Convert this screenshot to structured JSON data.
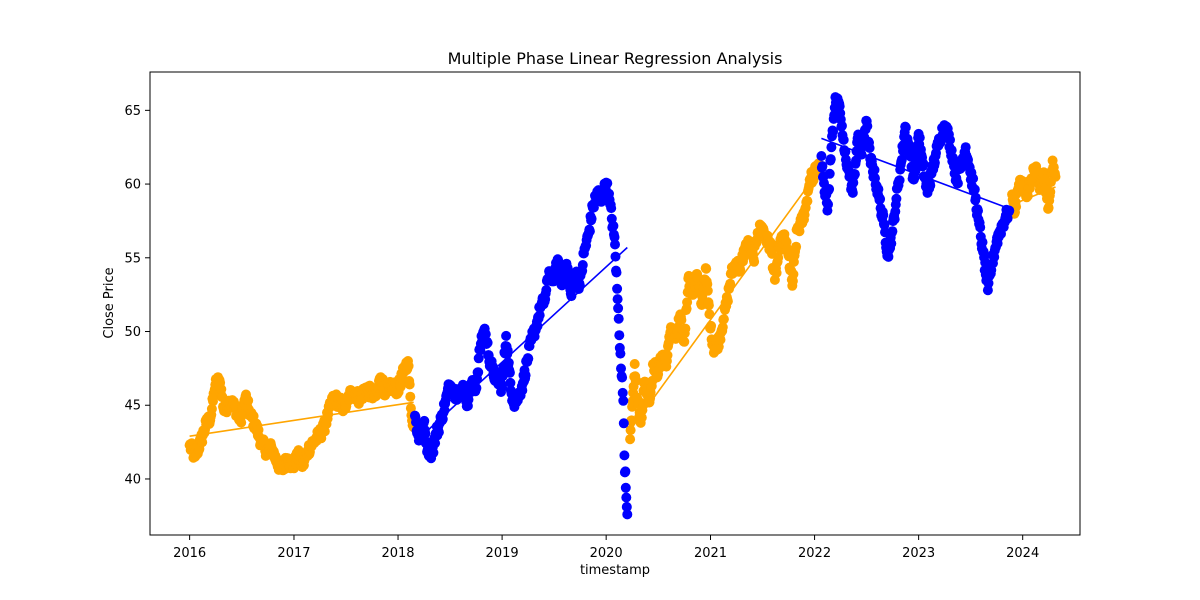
{
  "chart_data": {
    "type": "scatter",
    "title": "Multiple Phase Linear Regression Analysis",
    "xlabel": "timestamp",
    "ylabel": "Close Price",
    "xlim": [
      "2015-08-15",
      "2024-07-20"
    ],
    "ylim": [
      36.2,
      67.6
    ],
    "x_ticks": [
      "2016",
      "2017",
      "2018",
      "2019",
      "2020",
      "2021",
      "2022",
      "2023",
      "2024"
    ],
    "y_ticks": [
      40,
      45,
      50,
      55,
      60,
      65
    ],
    "grid": false,
    "legend": "none",
    "phase_colors": [
      "#ffa500",
      "#0000ff"
    ],
    "phases": [
      {
        "color": "#ffa500",
        "points": [
          [
            "2016-01-01",
            42.3
          ],
          [
            "2016-01-20",
            41.5
          ],
          [
            "2016-02-10",
            42.6
          ],
          [
            "2016-02-28",
            43.7
          ],
          [
            "2016-03-15",
            44.2
          ],
          [
            "2016-03-31",
            46.4
          ],
          [
            "2016-04-15",
            46.7
          ],
          [
            "2016-05-01",
            44.6
          ],
          [
            "2016-05-20",
            45.3
          ],
          [
            "2016-06-10",
            44.8
          ],
          [
            "2016-06-28",
            43.9
          ],
          [
            "2016-07-15",
            45.6
          ],
          [
            "2016-08-01",
            44.3
          ],
          [
            "2016-08-20",
            43.6
          ],
          [
            "2016-09-10",
            42.4
          ],
          [
            "2016-09-28",
            41.9
          ],
          [
            "2016-10-15",
            42.1
          ],
          [
            "2016-11-01",
            41.2
          ],
          [
            "2016-11-20",
            40.6
          ],
          [
            "2016-12-10",
            41.4
          ],
          [
            "2016-12-28",
            40.8
          ],
          [
            "2017-01-15",
            41.6
          ],
          [
            "2017-02-01",
            40.9
          ],
          [
            "2017-02-20",
            42.0
          ],
          [
            "2017-03-10",
            42.5
          ],
          [
            "2017-03-28",
            42.9
          ],
          [
            "2017-04-15",
            43.4
          ],
          [
            "2017-05-01",
            44.4
          ],
          [
            "2017-05-20",
            45.5
          ],
          [
            "2017-06-10",
            45.2
          ],
          [
            "2017-06-28",
            44.8
          ],
          [
            "2017-07-15",
            45.7
          ],
          [
            "2017-08-01",
            45.9
          ],
          [
            "2017-08-20",
            45.4
          ],
          [
            "2017-09-10",
            46.2
          ],
          [
            "2017-09-28",
            45.8
          ],
          [
            "2017-10-15",
            45.6
          ],
          [
            "2017-11-01",
            46.9
          ],
          [
            "2017-11-20",
            45.8
          ],
          [
            "2017-12-10",
            46.3
          ],
          [
            "2018-01-01",
            46.1
          ],
          [
            "2018-01-20",
            47.2
          ],
          [
            "2018-02-05",
            48.0
          ],
          [
            "2018-02-15",
            44.8
          ],
          [
            "2018-02-25",
            43.5
          ],
          [
            "2020-03-25",
            42.7
          ],
          [
            "2020-04-01",
            44.9
          ],
          [
            "2020-04-10",
            47.8
          ],
          [
            "2020-04-20",
            45.4
          ],
          [
            "2020-05-01",
            43.8
          ],
          [
            "2020-05-15",
            46.6
          ],
          [
            "2020-06-01",
            45.2
          ],
          [
            "2020-06-15",
            47.8
          ],
          [
            "2020-07-01",
            47.1
          ],
          [
            "2020-07-15",
            48.4
          ],
          [
            "2020-08-01",
            48.0
          ],
          [
            "2020-08-15",
            50.3
          ],
          [
            "2020-09-01",
            49.5
          ],
          [
            "2020-09-15",
            51.0
          ],
          [
            "2020-10-01",
            49.3
          ],
          [
            "2020-10-15",
            53.6
          ],
          [
            "2020-11-01",
            52.5
          ],
          [
            "2020-11-15",
            53.9
          ],
          [
            "2020-12-01",
            51.8
          ],
          [
            "2020-12-15",
            54.3
          ],
          [
            "2021-01-01",
            50.2
          ],
          [
            "2021-01-15",
            48.7
          ],
          [
            "2021-02-01",
            49.5
          ],
          [
            "2021-02-15",
            50.8
          ],
          [
            "2021-03-01",
            52.2
          ],
          [
            "2021-03-15",
            53.9
          ],
          [
            "2021-04-01",
            54.7
          ],
          [
            "2021-04-15",
            54.2
          ],
          [
            "2021-05-01",
            55.6
          ],
          [
            "2021-05-15",
            55.9
          ],
          [
            "2021-06-01",
            54.9
          ],
          [
            "2021-06-15",
            56.7
          ],
          [
            "2021-07-01",
            57.1
          ],
          [
            "2021-07-15",
            56.3
          ],
          [
            "2021-08-01",
            55.7
          ],
          [
            "2021-08-15",
            53.5
          ],
          [
            "2021-09-01",
            55.8
          ],
          [
            "2021-09-15",
            56.4
          ],
          [
            "2021-10-01",
            55.2
          ],
          [
            "2021-10-15",
            53.1
          ],
          [
            "2021-11-01",
            56.9
          ],
          [
            "2021-11-15",
            57.3
          ],
          [
            "2021-12-01",
            58.4
          ],
          [
            "2021-12-15",
            60.3
          ],
          [
            "2022-01-01",
            60.7
          ],
          [
            "2022-01-15",
            61.4
          ],
          [
            "2023-11-25",
            59.3
          ],
          [
            "2023-12-05",
            58.1
          ],
          [
            "2023-12-15",
            59.6
          ],
          [
            "2024-01-01",
            60.2
          ],
          [
            "2024-01-15",
            59.1
          ],
          [
            "2024-02-01",
            60.4
          ],
          [
            "2024-02-15",
            61.0
          ],
          [
            "2024-03-01",
            59.6
          ],
          [
            "2024-03-15",
            60.8
          ],
          [
            "2024-04-01",
            58.4
          ],
          [
            "2024-04-15",
            61.6
          ],
          [
            "2024-04-25",
            60.5
          ]
        ],
        "lines": [
          [
            [
              "2016-01-01",
              42.9
            ],
            [
              "2018-02-25",
              45.2
            ]
          ],
          [
            [
              "2020-03-25",
              43.3
            ],
            [
              "2022-01-20",
              61.0
            ]
          ],
          [
            [
              "2023-11-25",
              58.6
            ],
            [
              "2024-04-25",
              59.8
            ]
          ]
        ]
      },
      {
        "color": "#0000ff",
        "points": [
          [
            "2018-03-01",
            44.3
          ],
          [
            "2018-03-15",
            42.6
          ],
          [
            "2018-04-01",
            43.8
          ],
          [
            "2018-04-15",
            42.0
          ],
          [
            "2018-05-01",
            41.8
          ],
          [
            "2018-05-15",
            43.1
          ],
          [
            "2018-06-01",
            44.0
          ],
          [
            "2018-06-15",
            45.1
          ],
          [
            "2018-07-01",
            46.4
          ],
          [
            "2018-07-15",
            46.0
          ],
          [
            "2018-08-01",
            45.6
          ],
          [
            "2018-08-15",
            46.3
          ],
          [
            "2018-09-01",
            45.2
          ],
          [
            "2018-09-15",
            46.5
          ],
          [
            "2018-10-01",
            46.1
          ],
          [
            "2018-10-15",
            48.8
          ],
          [
            "2018-11-01",
            50.2
          ],
          [
            "2018-11-15",
            48.4
          ],
          [
            "2018-12-01",
            47.1
          ],
          [
            "2018-12-15",
            46.8
          ],
          [
            "2019-01-01",
            46.2
          ],
          [
            "2019-01-15",
            49.7
          ],
          [
            "2019-02-01",
            46.0
          ],
          [
            "2019-02-15",
            45.1
          ],
          [
            "2019-03-01",
            45.7
          ],
          [
            "2019-03-15",
            46.5
          ],
          [
            "2019-04-01",
            48.2
          ],
          [
            "2019-04-15",
            49.5
          ],
          [
            "2019-05-01",
            50.4
          ],
          [
            "2019-05-15",
            51.6
          ],
          [
            "2019-06-01",
            52.2
          ],
          [
            "2019-06-15",
            54.1
          ],
          [
            "2019-07-01",
            53.4
          ],
          [
            "2019-07-15",
            54.9
          ],
          [
            "2019-08-01",
            53.2
          ],
          [
            "2019-08-15",
            54.6
          ],
          [
            "2019-09-01",
            52.4
          ],
          [
            "2019-09-15",
            54.0
          ],
          [
            "2019-10-01",
            53.1
          ],
          [
            "2019-10-15",
            55.3
          ],
          [
            "2019-11-01",
            56.7
          ],
          [
            "2019-11-15",
            58.4
          ],
          [
            "2019-12-01",
            59.5
          ],
          [
            "2019-12-15",
            58.8
          ],
          [
            "2020-01-01",
            60.1
          ],
          [
            "2020-01-15",
            58.6
          ],
          [
            "2020-02-01",
            55.9
          ],
          [
            "2020-02-10",
            52.2
          ],
          [
            "2020-02-20",
            48.5
          ],
          [
            "2020-03-01",
            45.3
          ],
          [
            "2020-03-05",
            41.6
          ],
          [
            "2020-03-10",
            39.4
          ],
          [
            "2020-03-15",
            37.6
          ],
          [
            "2022-01-25",
            61.9
          ],
          [
            "2022-02-01",
            60.5
          ],
          [
            "2022-02-15",
            58.2
          ],
          [
            "2022-03-01",
            62.5
          ],
          [
            "2022-03-15",
            65.9
          ],
          [
            "2022-04-01",
            64.8
          ],
          [
            "2022-04-15",
            62.3
          ],
          [
            "2022-05-01",
            60.9
          ],
          [
            "2022-05-15",
            59.4
          ],
          [
            "2022-06-01",
            63.1
          ],
          [
            "2022-06-15",
            62.0
          ],
          [
            "2022-07-01",
            64.3
          ],
          [
            "2022-07-15",
            61.7
          ],
          [
            "2022-08-01",
            60.4
          ],
          [
            "2022-08-15",
            59.1
          ],
          [
            "2022-09-01",
            57.3
          ],
          [
            "2022-09-15",
            55.2
          ],
          [
            "2022-10-01",
            56.8
          ],
          [
            "2022-10-15",
            59.0
          ],
          [
            "2022-11-01",
            61.5
          ],
          [
            "2022-11-15",
            63.9
          ],
          [
            "2022-12-01",
            62.1
          ],
          [
            "2022-12-15",
            60.3
          ],
          [
            "2023-01-01",
            63.4
          ],
          [
            "2023-01-15",
            61.2
          ],
          [
            "2023-02-01",
            59.4
          ],
          [
            "2023-02-15",
            60.7
          ],
          [
            "2023-03-01",
            61.9
          ],
          [
            "2023-03-15",
            63.0
          ],
          [
            "2023-04-01",
            64.0
          ],
          [
            "2023-04-15",
            63.3
          ],
          [
            "2023-05-01",
            61.8
          ],
          [
            "2023-05-15",
            60.2
          ],
          [
            "2023-06-01",
            61.4
          ],
          [
            "2023-06-15",
            62.5
          ],
          [
            "2023-07-01",
            60.8
          ],
          [
            "2023-07-15",
            59.6
          ],
          [
            "2023-08-01",
            57.3
          ],
          [
            "2023-08-15",
            55.4
          ],
          [
            "2023-09-01",
            52.8
          ],
          [
            "2023-09-15",
            54.6
          ],
          [
            "2023-10-01",
            56.1
          ],
          [
            "2023-10-15",
            56.9
          ],
          [
            "2023-11-01",
            57.7
          ],
          [
            "2023-11-15",
            58.2
          ]
        ],
        "lines": [
          [
            [
              "2018-03-01",
              42.5
            ],
            [
              "2020-03-15",
              55.7
            ]
          ],
          [
            [
              "2022-01-25",
              63.1
            ],
            [
              "2023-11-20",
              58.3
            ]
          ]
        ]
      }
    ]
  }
}
